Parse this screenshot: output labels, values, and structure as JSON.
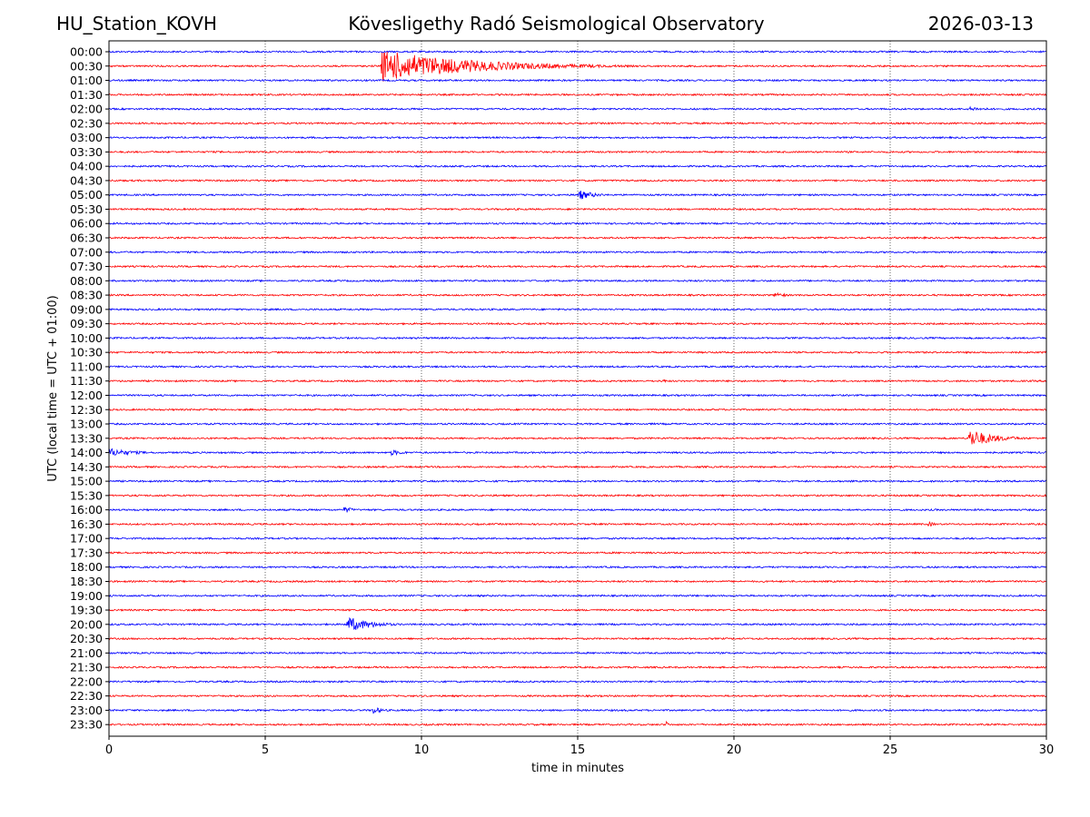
{
  "header": {
    "station": "HU_Station_KOVH",
    "title": "Kövesligethy Radó Seismological Observatory",
    "date": "2026-03-13"
  },
  "chart_data": {
    "type": "line",
    "title": "Kövesligethy Radó Seismological Observatory",
    "xlabel": "time in minutes",
    "ylabel": "UTC (local time = UTC + 01:00)",
    "xlim": [
      0,
      30
    ],
    "xticks": [
      0,
      5,
      10,
      15,
      20,
      25,
      30
    ],
    "colors": {
      "even": "#0000ff",
      "odd": "#ff0000"
    },
    "rows": [
      "00:00",
      "00:30",
      "01:00",
      "01:30",
      "02:00",
      "02:30",
      "03:00",
      "03:30",
      "04:00",
      "04:30",
      "05:00",
      "05:30",
      "06:00",
      "06:30",
      "07:00",
      "07:30",
      "08:00",
      "08:30",
      "09:00",
      "09:30",
      "10:00",
      "10:30",
      "11:00",
      "11:30",
      "12:00",
      "12:30",
      "13:00",
      "13:30",
      "14:00",
      "14:30",
      "15:00",
      "15:30",
      "16:00",
      "16:30",
      "17:00",
      "17:30",
      "18:00",
      "18:30",
      "19:00",
      "19:30",
      "20:00",
      "20:30",
      "21:00",
      "21:30",
      "22:00",
      "22:30",
      "23:00",
      "23:30"
    ],
    "events": [
      {
        "row": "00:30",
        "start_min": 8.7,
        "duration_min": 9.0,
        "amplitude": 18
      },
      {
        "row": "02:00",
        "start_min": 27.5,
        "duration_min": 2.5,
        "amplitude": 2.5
      },
      {
        "row": "05:00",
        "start_min": 15.0,
        "duration_min": 1.6,
        "amplitude": 6
      },
      {
        "row": "08:30",
        "start_min": 21.3,
        "duration_min": 0.8,
        "amplitude": 5
      },
      {
        "row": "11:30",
        "start_min": 17.7,
        "duration_min": 0.6,
        "amplitude": 2.5
      },
      {
        "row": "11:30",
        "start_min": 19.3,
        "duration_min": 0.6,
        "amplitude": 2.5
      },
      {
        "row": "13:30",
        "start_min": 27.5,
        "duration_min": 2.5,
        "amplitude": 11
      },
      {
        "row": "14:00",
        "start_min": 0.0,
        "duration_min": 2.5,
        "amplitude": 5
      },
      {
        "row": "14:00",
        "start_min": 9.0,
        "duration_min": 1.5,
        "amplitude": 3.5
      },
      {
        "row": "16:00",
        "start_min": 7.5,
        "duration_min": 0.8,
        "amplitude": 5
      },
      {
        "row": "16:30",
        "start_min": 26.2,
        "duration_min": 0.7,
        "amplitude": 3.5
      },
      {
        "row": "20:00",
        "start_min": 7.6,
        "duration_min": 2.5,
        "amplitude": 9
      },
      {
        "row": "23:00",
        "start_min": 8.4,
        "duration_min": 1.0,
        "amplitude": 5
      },
      {
        "row": "23:30",
        "start_min": 17.8,
        "duration_min": 0.2,
        "amplitude": 8
      }
    ]
  }
}
